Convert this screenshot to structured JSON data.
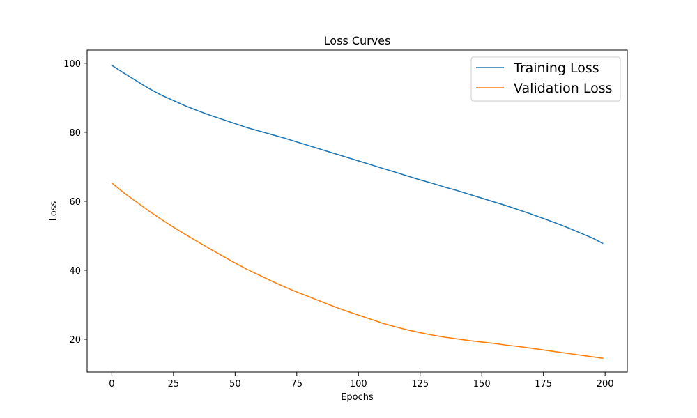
{
  "chart_data": {
    "type": "line",
    "title": "Loss Curves",
    "xlabel": "Epochs",
    "ylabel": "Loss",
    "xlim": [
      -10,
      209
    ],
    "ylim": [
      10.5,
      103.8
    ],
    "xticks": [
      0,
      25,
      50,
      75,
      100,
      125,
      150,
      175,
      200
    ],
    "yticks": [
      20,
      40,
      60,
      80,
      100
    ],
    "grid": false,
    "legend_position": "upper right",
    "series": [
      {
        "name": "Training Loss",
        "color": "#1f77b4",
        "x": [
          0,
          5,
          10,
          15,
          20,
          25,
          30,
          35,
          40,
          45,
          50,
          55,
          60,
          65,
          70,
          75,
          80,
          85,
          90,
          95,
          100,
          105,
          110,
          115,
          120,
          125,
          130,
          135,
          140,
          145,
          150,
          155,
          160,
          165,
          170,
          175,
          180,
          185,
          190,
          195,
          199
        ],
        "values": [
          99.4,
          97.1,
          94.9,
          92.7,
          90.8,
          89.2,
          87.6,
          86.2,
          84.9,
          83.7,
          82.5,
          81.3,
          80.3,
          79.3,
          78.3,
          77.2,
          76.1,
          75.0,
          73.9,
          72.8,
          71.7,
          70.6,
          69.5,
          68.4,
          67.3,
          66.2,
          65.2,
          64.1,
          63.1,
          62.0,
          60.9,
          59.8,
          58.7,
          57.5,
          56.3,
          55.0,
          53.7,
          52.3,
          50.8,
          49.3,
          47.8
        ]
      },
      {
        "name": "Validation Loss",
        "color": "#ff7f0e",
        "x": [
          0,
          5,
          10,
          15,
          20,
          25,
          30,
          35,
          40,
          45,
          50,
          55,
          60,
          65,
          70,
          75,
          80,
          85,
          90,
          95,
          100,
          105,
          110,
          115,
          120,
          125,
          130,
          135,
          140,
          145,
          150,
          155,
          160,
          165,
          170,
          175,
          180,
          185,
          190,
          195,
          199
        ],
        "values": [
          65.3,
          62.4,
          59.8,
          57.2,
          54.8,
          52.5,
          50.3,
          48.2,
          46.1,
          44.1,
          42.1,
          40.2,
          38.5,
          36.8,
          35.2,
          33.7,
          32.3,
          30.9,
          29.5,
          28.2,
          27.0,
          25.8,
          24.6,
          23.6,
          22.7,
          21.9,
          21.2,
          20.6,
          20.1,
          19.6,
          19.2,
          18.8,
          18.3,
          17.9,
          17.4,
          16.9,
          16.4,
          15.9,
          15.4,
          14.9,
          14.5
        ]
      }
    ]
  }
}
